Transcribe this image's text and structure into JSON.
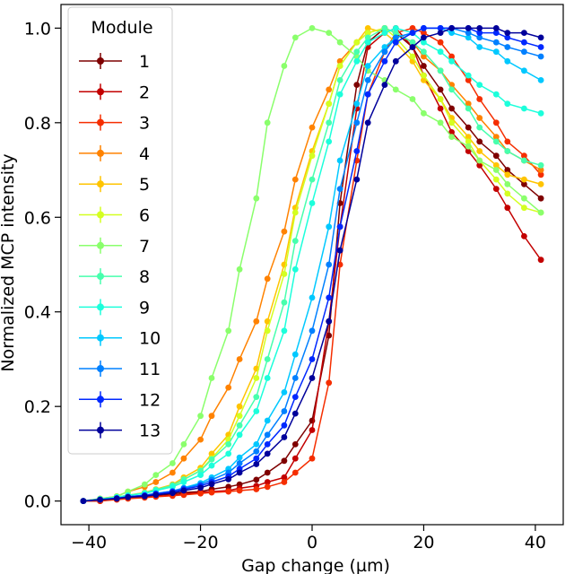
{
  "chart_data": {
    "type": "line",
    "title": "",
    "xlabel": "Gap change (µm)",
    "ylabel": "Normalized MCP intensity",
    "xlim": [
      -45,
      45
    ],
    "ylim": [
      -0.05,
      1.05
    ],
    "xticks": [
      -40,
      -20,
      0,
      20,
      40
    ],
    "yticks": [
      0.0,
      0.2,
      0.4,
      0.6,
      0.8,
      1.0
    ],
    "xtick_labels": [
      "−40",
      "−20",
      "0",
      "20",
      "40"
    ],
    "ytick_labels": [
      "0.0",
      "0.2",
      "0.4",
      "0.6",
      "0.8",
      "1.0"
    ],
    "grid": false,
    "legend": {
      "title": "Module",
      "placement": "top-left"
    },
    "x": [
      -41,
      -38,
      -35,
      -33,
      -30,
      -28,
      -25,
      -23,
      -20,
      -18,
      -15,
      -13,
      -10,
      -8,
      -5,
      -3,
      0,
      3,
      5,
      8,
      10,
      13,
      15,
      18,
      20,
      23,
      25,
      28,
      30,
      33,
      35,
      38,
      41
    ],
    "series": [
      {
        "name": "1",
        "color": "#7f0000",
        "values": [
          0.0,
          0.0,
          0.005,
          0.008,
          0.01,
          0.012,
          0.015,
          0.018,
          0.02,
          0.025,
          0.03,
          0.035,
          0.045,
          0.06,
          0.085,
          0.12,
          0.17,
          0.35,
          0.63,
          0.88,
          0.97,
          1.0,
          0.99,
          0.96,
          0.92,
          0.87,
          0.83,
          0.79,
          0.76,
          0.73,
          0.7,
          0.67,
          0.64
        ]
      },
      {
        "name": "2",
        "color": "#c30000",
        "values": [
          0.0,
          0.0,
          0.004,
          0.006,
          0.008,
          0.01,
          0.012,
          0.015,
          0.018,
          0.02,
          0.022,
          0.027,
          0.032,
          0.04,
          0.05,
          0.09,
          0.15,
          0.38,
          0.58,
          0.83,
          0.96,
          0.99,
          1.0,
          0.96,
          0.9,
          0.83,
          0.78,
          0.74,
          0.71,
          0.66,
          0.62,
          0.56,
          0.51
        ]
      },
      {
        "name": "3",
        "color": "#f52e00",
        "values": [
          0.0,
          0.0,
          0.003,
          0.005,
          0.007,
          0.009,
          0.011,
          0.013,
          0.016,
          0.018,
          0.02,
          0.022,
          0.025,
          0.03,
          0.04,
          0.06,
          0.09,
          0.25,
          0.5,
          0.72,
          0.86,
          0.95,
          0.99,
          1.0,
          0.99,
          0.97,
          0.94,
          0.89,
          0.85,
          0.8,
          0.76,
          0.73,
          0.69
        ]
      },
      {
        "name": "4",
        "color": "#ff8200",
        "values": [
          0.0,
          0.005,
          0.01,
          0.02,
          0.03,
          0.04,
          0.06,
          0.09,
          0.13,
          0.18,
          0.24,
          0.3,
          0.38,
          0.47,
          0.57,
          0.68,
          0.79,
          0.87,
          0.93,
          0.97,
          0.99,
          1.0,
          0.99,
          0.97,
          0.94,
          0.91,
          0.88,
          0.84,
          0.81,
          0.77,
          0.74,
          0.72,
          0.7
        ]
      },
      {
        "name": "5",
        "color": "#ffc400",
        "values": [
          0.0,
          0.004,
          0.008,
          0.012,
          0.018,
          0.025,
          0.035,
          0.05,
          0.07,
          0.1,
          0.14,
          0.2,
          0.28,
          0.38,
          0.5,
          0.62,
          0.74,
          0.84,
          0.92,
          0.97,
          1.0,
          0.99,
          0.97,
          0.93,
          0.89,
          0.85,
          0.81,
          0.77,
          0.74,
          0.71,
          0.69,
          0.68,
          0.67
        ]
      },
      {
        "name": "6",
        "color": "#d4ff21",
        "values": [
          0.0,
          0.004,
          0.008,
          0.012,
          0.017,
          0.023,
          0.032,
          0.045,
          0.065,
          0.09,
          0.13,
          0.18,
          0.26,
          0.36,
          0.48,
          0.61,
          0.73,
          0.84,
          0.92,
          0.97,
          0.99,
          1.0,
          0.98,
          0.94,
          0.9,
          0.85,
          0.8,
          0.76,
          0.72,
          0.68,
          0.65,
          0.62,
          0.61
        ]
      },
      {
        "name": "7",
        "color": "#8aff6c",
        "values": [
          0.0,
          0.005,
          0.01,
          0.02,
          0.035,
          0.055,
          0.08,
          0.12,
          0.18,
          0.26,
          0.36,
          0.49,
          0.64,
          0.8,
          0.92,
          0.98,
          1.0,
          0.99,
          0.97,
          0.94,
          0.91,
          0.89,
          0.87,
          0.85,
          0.82,
          0.8,
          0.77,
          0.75,
          0.72,
          0.7,
          0.67,
          0.64,
          0.61
        ]
      },
      {
        "name": "8",
        "color": "#47ffad",
        "values": [
          0.0,
          0.004,
          0.008,
          0.012,
          0.017,
          0.024,
          0.033,
          0.046,
          0.064,
          0.088,
          0.12,
          0.16,
          0.22,
          0.3,
          0.42,
          0.55,
          0.68,
          0.8,
          0.89,
          0.95,
          0.98,
          1.0,
          0.99,
          0.97,
          0.95,
          0.91,
          0.87,
          0.83,
          0.79,
          0.76,
          0.74,
          0.72,
          0.71
        ]
      },
      {
        "name": "9",
        "color": "#1cffdb",
        "values": [
          0.0,
          0.004,
          0.008,
          0.012,
          0.016,
          0.022,
          0.03,
          0.04,
          0.055,
          0.075,
          0.1,
          0.14,
          0.19,
          0.26,
          0.36,
          0.49,
          0.63,
          0.76,
          0.86,
          0.93,
          0.97,
          0.99,
          1.0,
          0.99,
          0.97,
          0.95,
          0.93,
          0.9,
          0.88,
          0.86,
          0.84,
          0.83,
          0.82
        ]
      },
      {
        "name": "10",
        "color": "#00c8ff",
        "values": [
          0.0,
          0.003,
          0.006,
          0.009,
          0.012,
          0.016,
          0.021,
          0.028,
          0.038,
          0.05,
          0.068,
          0.092,
          0.12,
          0.17,
          0.23,
          0.31,
          0.43,
          0.58,
          0.72,
          0.84,
          0.92,
          0.96,
          0.98,
          0.99,
          1.0,
          1.0,
          0.99,
          0.98,
          0.96,
          0.95,
          0.93,
          0.91,
          0.89
        ]
      },
      {
        "name": "11",
        "color": "#0080ff",
        "values": [
          0.0,
          0.003,
          0.006,
          0.009,
          0.012,
          0.016,
          0.021,
          0.027,
          0.035,
          0.045,
          0.06,
          0.08,
          0.105,
          0.14,
          0.19,
          0.26,
          0.36,
          0.5,
          0.66,
          0.8,
          0.89,
          0.95,
          0.98,
          0.99,
          1.0,
          1.0,
          1.0,
          0.99,
          0.98,
          0.97,
          0.96,
          0.95,
          0.94
        ]
      },
      {
        "name": "12",
        "color": "#0028ff",
        "values": [
          0.0,
          0.003,
          0.006,
          0.009,
          0.012,
          0.015,
          0.02,
          0.025,
          0.032,
          0.04,
          0.052,
          0.068,
          0.09,
          0.12,
          0.16,
          0.22,
          0.3,
          0.43,
          0.58,
          0.74,
          0.86,
          0.93,
          0.97,
          0.99,
          1.0,
          1.0,
          1.0,
          1.0,
          0.99,
          0.99,
          0.98,
          0.97,
          0.96
        ]
      },
      {
        "name": "13",
        "color": "#00009b",
        "values": [
          0.0,
          0.003,
          0.005,
          0.008,
          0.01,
          0.013,
          0.017,
          0.022,
          0.028,
          0.036,
          0.046,
          0.06,
          0.078,
          0.1,
          0.135,
          0.185,
          0.26,
          0.38,
          0.53,
          0.68,
          0.8,
          0.88,
          0.93,
          0.96,
          0.98,
          0.99,
          1.0,
          1.0,
          1.0,
          1.0,
          0.99,
          0.99,
          0.98
        ]
      }
    ]
  }
}
